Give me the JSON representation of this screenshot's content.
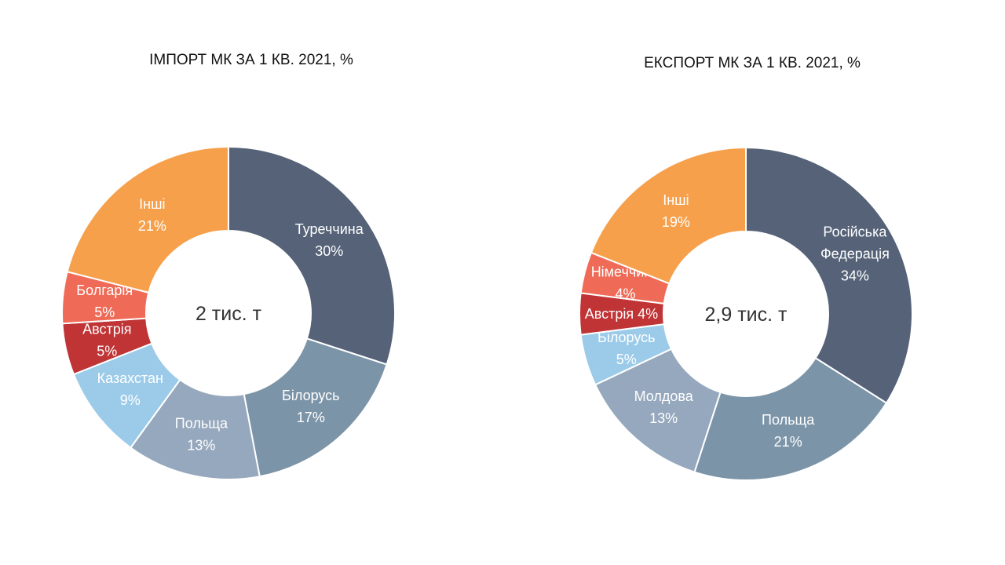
{
  "chart_data": [
    {
      "type": "pie",
      "title": "ІМПОРТ МК ЗА 1 КВ. 2021, %",
      "center_label": "2 тис. т",
      "slices": [
        {
          "label": "Туреччина",
          "value": 30,
          "value_label": "30%",
          "color": "#556278"
        },
        {
          "label": "Білорусь",
          "value": 17,
          "value_label": "17%",
          "color": "#7c94a8"
        },
        {
          "label": "Польща",
          "value": 13,
          "value_label": "13%",
          "color": "#96a8bd"
        },
        {
          "label": "Казахстан",
          "value": 9,
          "value_label": "9%",
          "color": "#9ccbe9"
        },
        {
          "label": "Австрія",
          "value": 5,
          "value_label": "5%",
          "color": "#c03436"
        },
        {
          "label": "Болгарія",
          "value": 5,
          "value_label": "5%",
          "color": "#ef6b57"
        },
        {
          "label": "Інші",
          "value": 21,
          "value_label": "21%",
          "color": "#f6a04c"
        }
      ]
    },
    {
      "type": "pie",
      "title": "ЕКСПОРТ МК ЗА 1 КВ. 2021, %",
      "center_label": "2,9 тис. т",
      "slices": [
        {
          "label": "Російська Федерація",
          "label_lines": [
            "Російська",
            "Федерація"
          ],
          "value": 34,
          "value_label": "34%",
          "color": "#556278"
        },
        {
          "label": "Польща",
          "value": 21,
          "value_label": "21%",
          "color": "#7c94a8"
        },
        {
          "label": "Молдова",
          "value": 13,
          "value_label": "13%",
          "color": "#96a8bd"
        },
        {
          "label": "Білорусь",
          "value": 5,
          "value_label": "5%",
          "color": "#9ccbe9"
        },
        {
          "label": "Австрія",
          "value": 4,
          "value_label": "4%",
          "color": "#c03436",
          "single_line": true
        },
        {
          "label": "Німеччина",
          "value": 4,
          "value_label": "4%",
          "color": "#ef6b57"
        },
        {
          "label": "Інші",
          "value": 19,
          "value_label": "19%",
          "color": "#f6a04c"
        }
      ]
    }
  ]
}
